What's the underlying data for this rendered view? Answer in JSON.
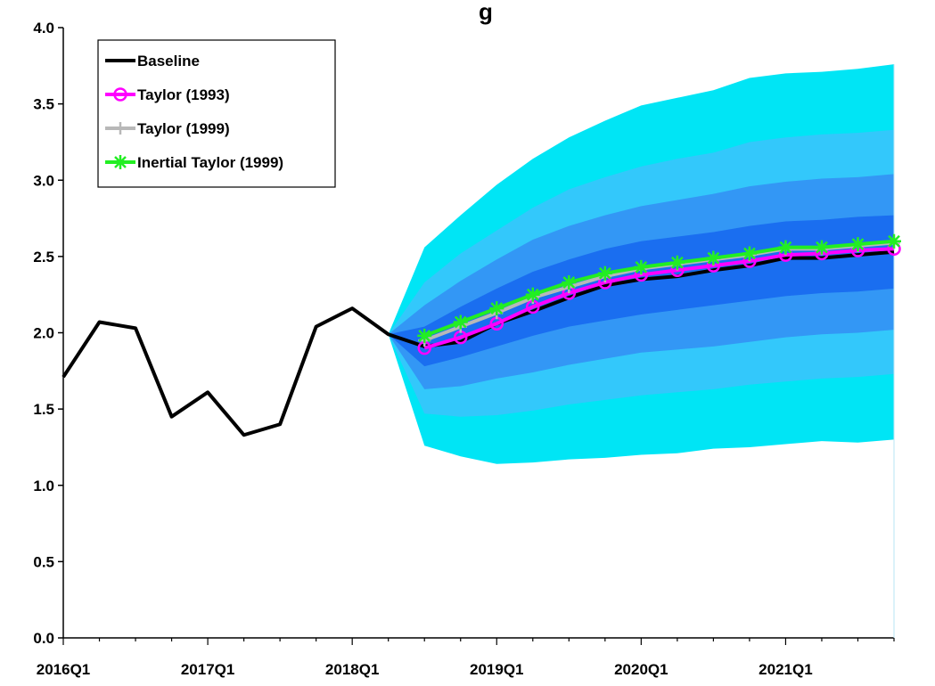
{
  "chart_data": {
    "type": "line",
    "title": "g",
    "xlabel": "",
    "ylabel": "",
    "ylim": [
      0,
      4
    ],
    "yticks": [
      0.0,
      0.5,
      1.0,
      1.5,
      2.0,
      2.5,
      3.0,
      3.5,
      4.0
    ],
    "ytick_labels": [
      "0.0",
      "0.5",
      "1.0",
      "1.5",
      "2.0",
      "2.5",
      "3.0",
      "3.5",
      "4.0"
    ],
    "x_categories": [
      "2016Q1",
      "2016Q2",
      "2016Q3",
      "2016Q4",
      "2017Q1",
      "2017Q2",
      "2017Q3",
      "2017Q4",
      "2018Q1",
      "2018Q2",
      "2018Q3",
      "2018Q4",
      "2019Q1",
      "2019Q2",
      "2019Q3",
      "2019Q4",
      "2020Q1",
      "2020Q2",
      "2020Q3",
      "2020Q4",
      "2021Q1",
      "2021Q2",
      "2021Q3",
      "2021Q4"
    ],
    "xtick_labels": [
      "2016Q1",
      "2017Q1",
      "2018Q1",
      "2019Q1",
      "2020Q1",
      "2021Q1"
    ],
    "grid": false,
    "legend_position": "top-left",
    "series": [
      {
        "name": "Baseline",
        "color": "#000000",
        "marker": "none",
        "values": [
          1.71,
          2.07,
          2.03,
          1.45,
          1.61,
          1.33,
          1.4,
          2.04,
          2.16,
          1.99,
          1.91,
          1.94,
          2.06,
          2.14,
          2.23,
          2.31,
          2.35,
          2.37,
          2.41,
          2.44,
          2.49,
          2.49,
          2.51,
          2.53
        ]
      },
      {
        "name": "Taylor (1993)",
        "color": "#ff00ff",
        "marker": "circle",
        "values": [
          null,
          null,
          null,
          null,
          null,
          null,
          null,
          null,
          null,
          null,
          1.9,
          1.97,
          2.06,
          2.17,
          2.26,
          2.33,
          2.38,
          2.41,
          2.44,
          2.47,
          2.51,
          2.52,
          2.54,
          2.55
        ]
      },
      {
        "name": "Taylor (1999)",
        "color": "#b8b8b8",
        "marker": "plus",
        "values": [
          null,
          null,
          null,
          null,
          null,
          null,
          null,
          null,
          null,
          null,
          1.95,
          2.04,
          2.13,
          2.23,
          2.3,
          2.37,
          2.42,
          2.45,
          2.48,
          2.51,
          2.55,
          2.55,
          2.57,
          2.59
        ]
      },
      {
        "name": "Inertial Taylor (1999)",
        "color": "#22ee22",
        "marker": "star",
        "values": [
          null,
          null,
          null,
          null,
          null,
          null,
          null,
          null,
          null,
          null,
          1.98,
          2.07,
          2.16,
          2.25,
          2.33,
          2.39,
          2.43,
          2.46,
          2.49,
          2.52,
          2.56,
          2.56,
          2.58,
          2.6
        ]
      }
    ],
    "fan_bands": {
      "start_index": 9,
      "start_value": 1.99,
      "colors": [
        "#00e5f5",
        "#33c8fb",
        "#3397f5",
        "#1a6ef0"
      ],
      "outer_upper": [
        2.56,
        2.77,
        2.97,
        3.14,
        3.28,
        3.39,
        3.49,
        3.54,
        3.59,
        3.67,
        3.7,
        3.71,
        3.73,
        3.76
      ],
      "outer_lower": [
        1.26,
        1.19,
        1.14,
        1.15,
        1.17,
        1.18,
        1.2,
        1.21,
        1.24,
        1.25,
        1.27,
        1.29,
        1.28,
        1.3
      ],
      "mid2_upper": [
        2.33,
        2.52,
        2.67,
        2.82,
        2.94,
        3.02,
        3.09,
        3.14,
        3.18,
        3.25,
        3.28,
        3.3,
        3.31,
        3.33
      ],
      "mid2_lower": [
        1.47,
        1.45,
        1.46,
        1.49,
        1.53,
        1.56,
        1.59,
        1.61,
        1.63,
        1.66,
        1.68,
        1.7,
        1.71,
        1.73
      ],
      "mid1_upper": [
        2.18,
        2.34,
        2.48,
        2.61,
        2.7,
        2.77,
        2.83,
        2.87,
        2.91,
        2.96,
        2.99,
        3.01,
        3.02,
        3.04
      ],
      "mid1_lower": [
        1.63,
        1.65,
        1.7,
        1.74,
        1.79,
        1.83,
        1.87,
        1.89,
        1.91,
        1.94,
        1.97,
        1.99,
        2.0,
        2.02
      ],
      "inner_upper": [
        2.04,
        2.17,
        2.29,
        2.4,
        2.48,
        2.55,
        2.6,
        2.63,
        2.66,
        2.7,
        2.73,
        2.74,
        2.76,
        2.77
      ],
      "inner_lower": [
        1.78,
        1.84,
        1.91,
        1.98,
        2.04,
        2.08,
        2.12,
        2.15,
        2.18,
        2.21,
        2.24,
        2.26,
        2.27,
        2.29
      ]
    }
  }
}
